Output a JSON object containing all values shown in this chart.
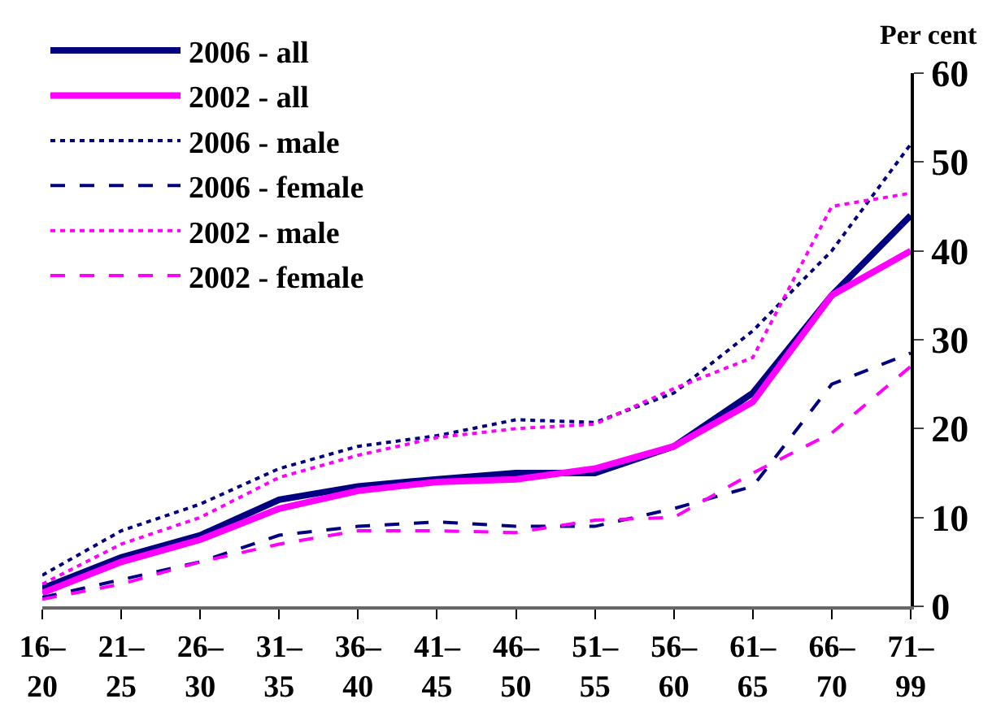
{
  "chart_data": {
    "type": "line",
    "ylabel": "Per cent",
    "categories": [
      "16–\n20",
      "21–\n25",
      "26–\n30",
      "31–\n35",
      "36–\n40",
      "41–\n45",
      "46–\n50",
      "51–\n55",
      "56–\n60",
      "61–\n65",
      "66–\n70",
      "71–\n99"
    ],
    "series": [
      {
        "name": "2006 - all",
        "color": "#000080",
        "line_style": "solid",
        "values": [
          2,
          5.5,
          8,
          12,
          13.5,
          14.3,
          15,
          15,
          18,
          24,
          35,
          44
        ]
      },
      {
        "name": "2002 - all",
        "color": "#ff00ff",
        "line_style": "solid",
        "values": [
          1.5,
          5,
          7.5,
          11,
          13,
          14,
          14.3,
          15.5,
          18,
          23,
          35,
          40
        ]
      },
      {
        "name": "2006 - male",
        "color": "#000080",
        "line_style": "dotted",
        "values": [
          3.5,
          8.5,
          11.5,
          15.5,
          18,
          19.2,
          21,
          20.7,
          24,
          31,
          40,
          52
        ]
      },
      {
        "name": "2006 - female",
        "color": "#000080",
        "line_style": "dashed",
        "values": [
          1,
          3,
          5,
          8,
          9,
          9.5,
          9,
          9,
          11,
          13.5,
          25,
          28.5
        ]
      },
      {
        "name": "2002 - male",
        "color": "#ff00ff",
        "line_style": "dotted",
        "values": [
          2.5,
          7,
          10,
          14.5,
          17,
          19,
          20,
          20.5,
          24.5,
          28,
          45,
          46.5
        ]
      },
      {
        "name": "2002 - female",
        "color": "#ff00ff",
        "line_style": "dashed",
        "values": [
          0.8,
          2.5,
          5,
          7,
          8.5,
          8.5,
          8.3,
          9.7,
          10,
          15,
          19.5,
          27
        ]
      }
    ],
    "ylim": [
      0,
      60
    ],
    "yticks": [
      0,
      10,
      20,
      30,
      40,
      50,
      60
    ],
    "grid": false,
    "legend": "top left",
    "marker": "none"
  }
}
